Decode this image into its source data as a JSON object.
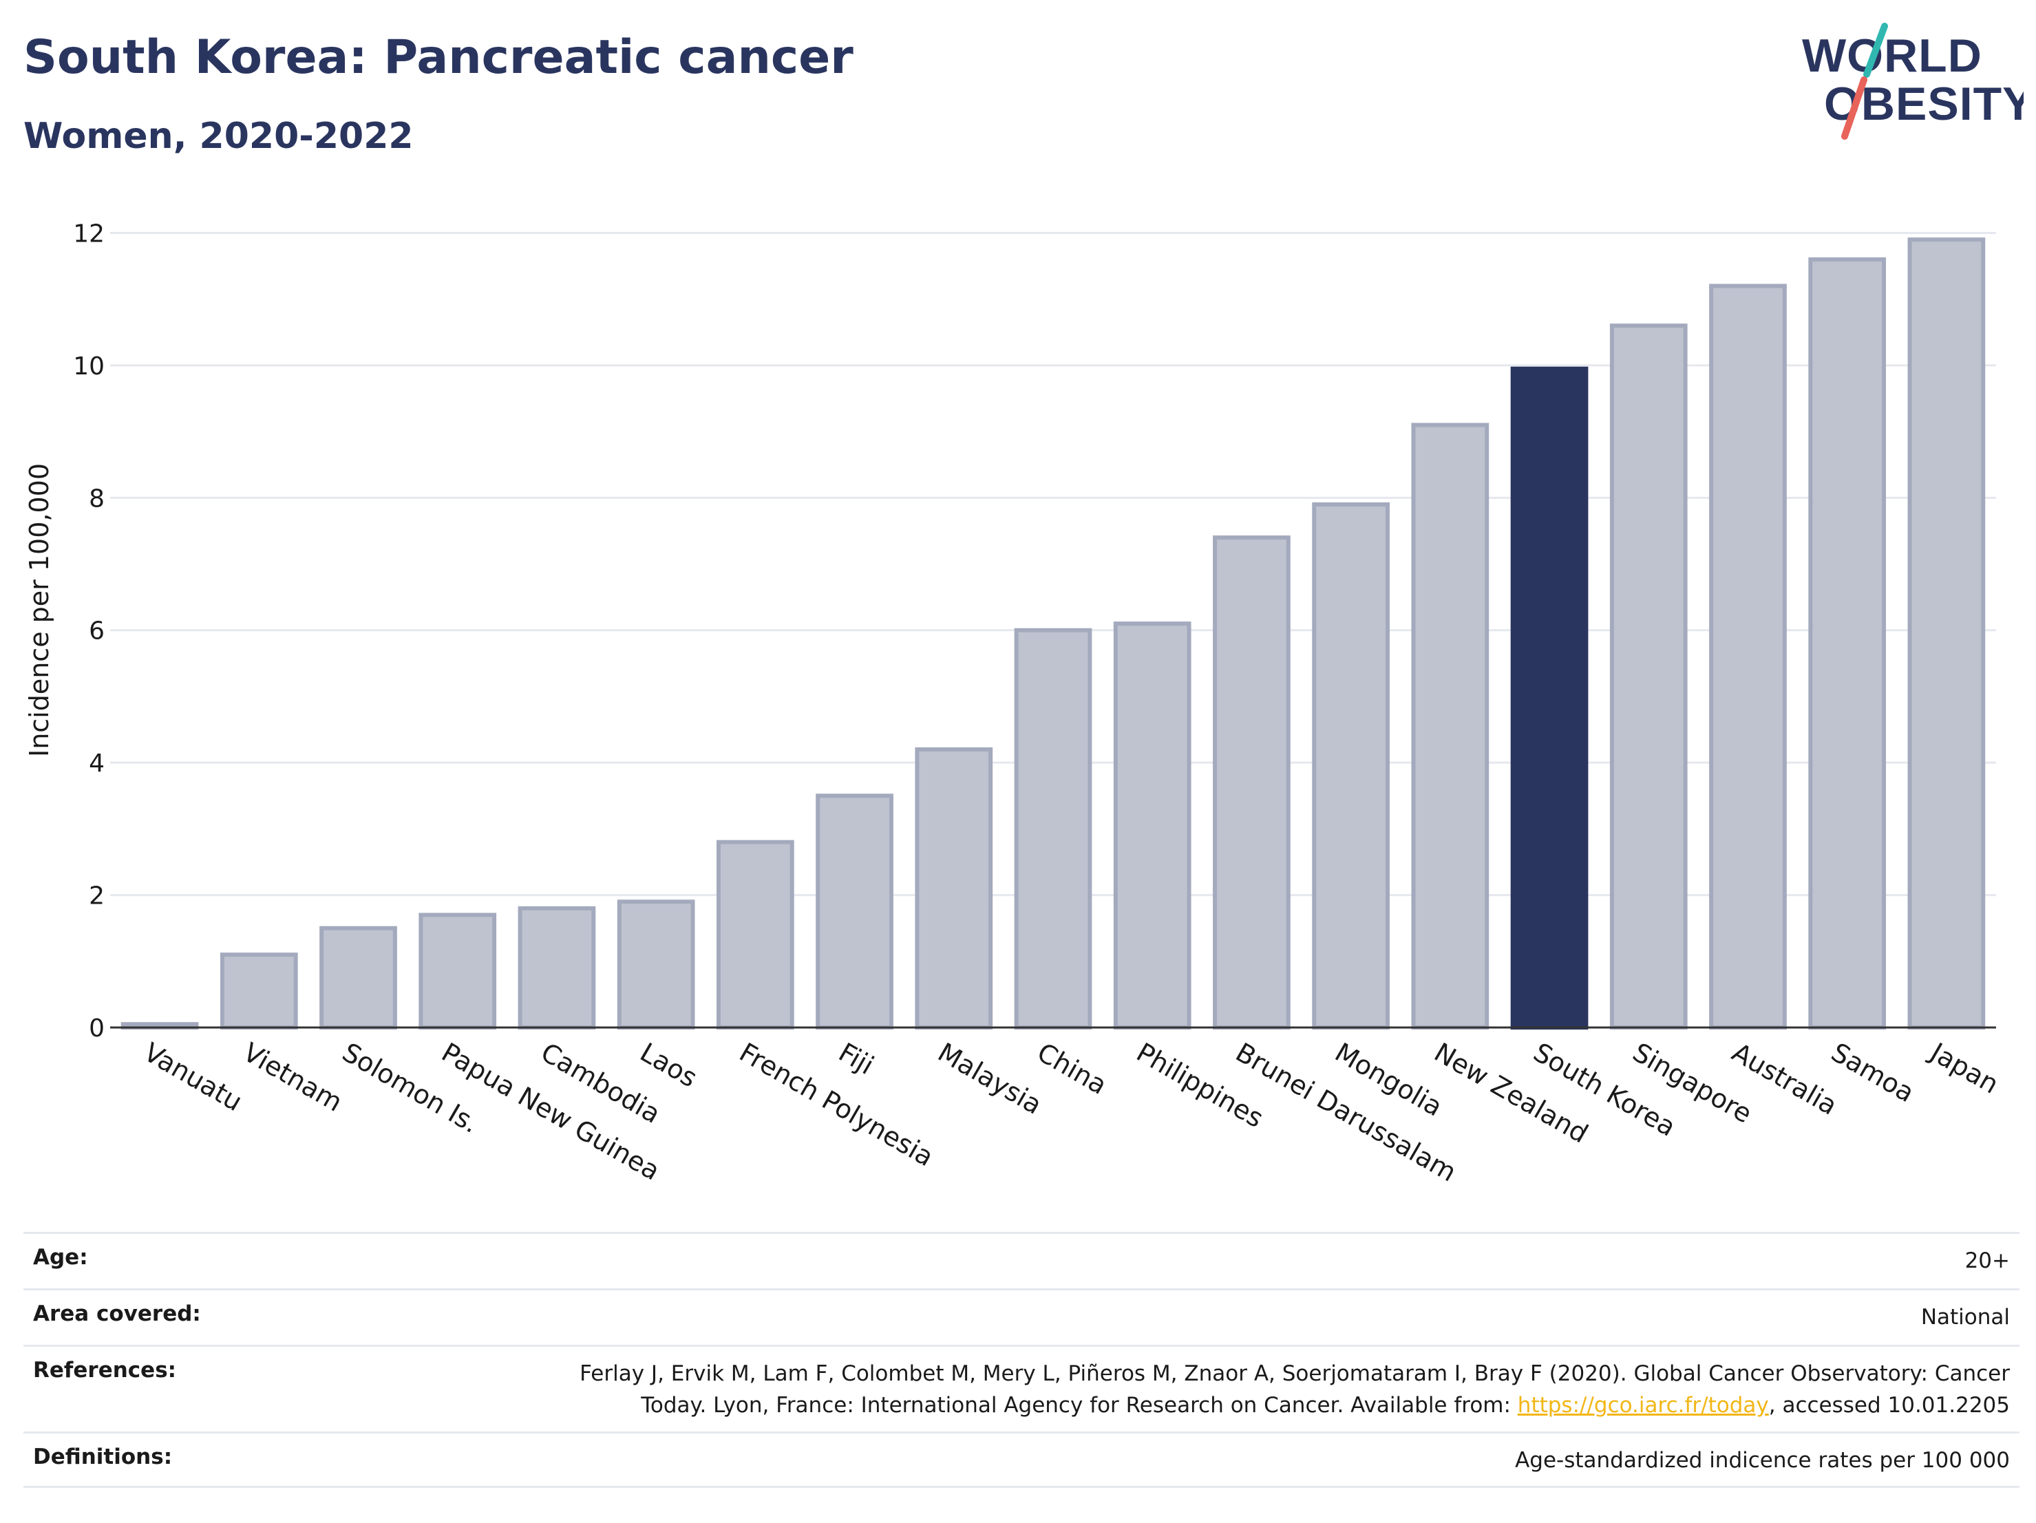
{
  "header": {
    "title": "South Korea: Pancreatic cancer",
    "subtitle": "Women, 2020-2022"
  },
  "logo": {
    "line1": "WORLD",
    "line2": "OBESITY",
    "colors": {
      "text": "#2a355f",
      "slash_top": "#2fb7b0",
      "slash_bottom": "#e8635a"
    }
  },
  "chart_data": {
    "type": "bar",
    "ylabel": "Incidence per 100,000",
    "ylim": [
      0,
      12.4
    ],
    "yticks": [
      0,
      2,
      4,
      6,
      8,
      10,
      12
    ],
    "grid": true,
    "categories": [
      "Vanuatu",
      "Vietnam",
      "Solomon Is.",
      "Papua New Guinea",
      "Cambodia",
      "Laos",
      "French Polynesia",
      "Fiji",
      "Malaysia",
      "China",
      "Philippines",
      "Brunei Darussalam",
      "Mongolia",
      "New Zealand",
      "South Korea",
      "Singapore",
      "Australia",
      "Samoa",
      "Japan"
    ],
    "values": [
      0.05,
      1.1,
      1.5,
      1.7,
      1.8,
      1.9,
      2.8,
      3.5,
      4.2,
      6.0,
      6.1,
      7.4,
      7.9,
      9.1,
      9.95,
      10.6,
      11.2,
      11.6,
      11.9
    ],
    "highlight": "South Korea",
    "colors": {
      "bar": "#bfc3d0",
      "bar_edge": "#a4aabd",
      "highlight": "#2a355f",
      "grid": "#e6e8ef",
      "axis": "#333333"
    }
  },
  "info": {
    "age_label": "Age:",
    "age_value": "20+",
    "area_label": "Area covered:",
    "area_value": "National",
    "refs_label": "References:",
    "refs_text1": "Ferlay J, Ervik M, Lam F, Colombet M, Mery L, Piñeros M, Znaor A, Soerjomataram I, Bray F (2020). Global Cancer Observatory: Cancer",
    "refs_text2": "Today. Lyon, France: International Agency for Research on Cancer. Available from: ",
    "refs_link": "https://gco.iarc.fr/today",
    "refs_text3": ", accessed 10.01.2205",
    "defs_label": "Definitions:",
    "defs_value": "Age-standardized indicence rates per 100 000"
  }
}
